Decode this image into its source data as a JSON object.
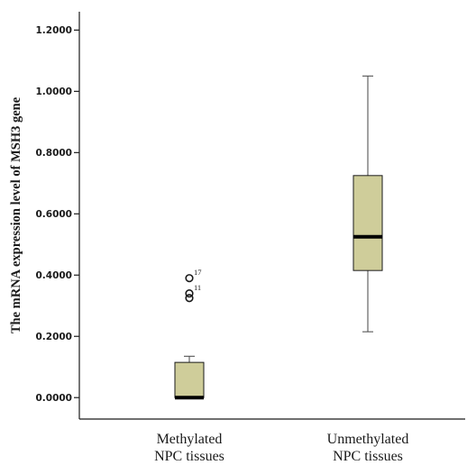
{
  "chart_data": {
    "type": "boxplot",
    "ylabel": "The mRNA expression level of MSH3 gene",
    "ylim": [
      -0.07,
      1.26
    ],
    "yticks": [
      0.0,
      0.2,
      0.4,
      0.6,
      0.8,
      1.0,
      1.2
    ],
    "ytick_labels": [
      "0.0000",
      "0.2000",
      "0.4000",
      "0.6000",
      "0.8000",
      "1.0000",
      "1.2000"
    ],
    "grid": false,
    "colors": {
      "box_fill": "#cfcd9a",
      "line": "#1a1a1a",
      "whisker": "#555555"
    },
    "groups": [
      {
        "label_lines": [
          "Methylated",
          "NPC tissues"
        ],
        "min": 0.0,
        "q1": 0.0,
        "median": 0.0,
        "q3": 0.115,
        "max": 0.135,
        "outliers": [
          {
            "value": 0.39,
            "label": "17"
          },
          {
            "value": 0.34,
            "label": "11"
          },
          {
            "value": 0.325,
            "label": ""
          }
        ]
      },
      {
        "label_lines": [
          "Unmethylated",
          "NPC tissues"
        ],
        "min": 0.215,
        "q1": 0.415,
        "median": 0.525,
        "q3": 0.725,
        "max": 1.05,
        "outliers": []
      }
    ]
  }
}
